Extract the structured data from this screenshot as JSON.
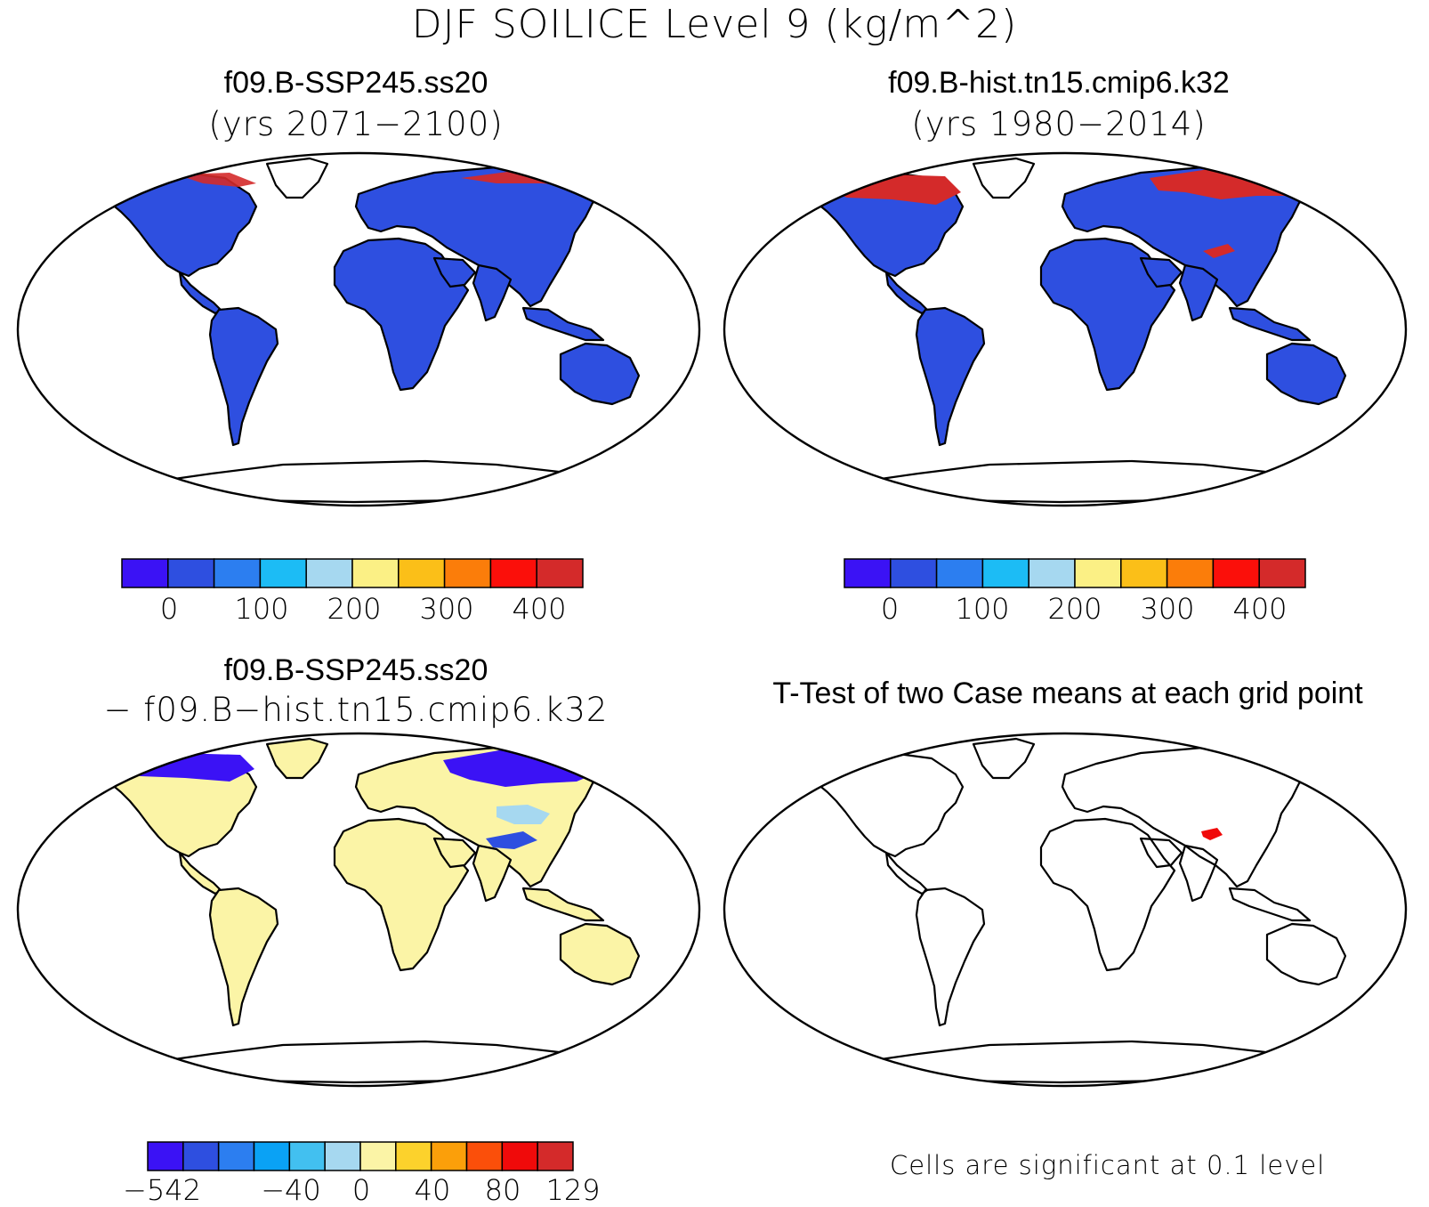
{
  "title": "DJF SOILICE Level 9 (kg/m^2)",
  "panels": [
    {
      "id": "p1",
      "title": "f09.B-SSP245.ss20",
      "subtitle": "(yrs 2071−2100)"
    },
    {
      "id": "p2",
      "title": "f09.B-hist.tn15.cmip6.k32",
      "subtitle": "(yrs 1980−2014)"
    },
    {
      "id": "p3",
      "title": "f09.B-SSP245.ss20",
      "subtitle": "− f09.B−hist.tn15.cmip6.k32"
    },
    {
      "id": "p4",
      "title": "T-Test of two Case means at each grid point",
      "subtitle": ""
    }
  ],
  "colorbars": {
    "case": {
      "colors": [
        "#3b12f5",
        "#2e4fe0",
        "#2c7ef0",
        "#1cbcf5",
        "#a6d8f0",
        "#fbf085",
        "#fbbf18",
        "#fb7d0a",
        "#fb0f0a",
        "#d42a2a"
      ],
      "ticks": [
        "0",
        "100",
        "200",
        "300",
        "400"
      ]
    },
    "diff": {
      "colors": [
        "#3b12f5",
        "#2e4fe0",
        "#2c7ef0",
        "#0aa2f5",
        "#42c0f0",
        "#a6d8f0",
        "#fbf4a6",
        "#fcd22c",
        "#fb9f0a",
        "#fb4f0a",
        "#f00a0a",
        "#d42a2a"
      ],
      "ticks": [
        "−542",
        "−40",
        "0",
        "40",
        "80",
        "129"
      ]
    }
  },
  "significance_note": "Cells are significant at 0.1 level",
  "map_colors": {
    "land_case": "#2e4fe0",
    "land_diff": "#fbf4a6",
    "high_ice": "#d42a2a",
    "significant": "#f00a0a",
    "frozen_diff": "#3b12f5"
  }
}
